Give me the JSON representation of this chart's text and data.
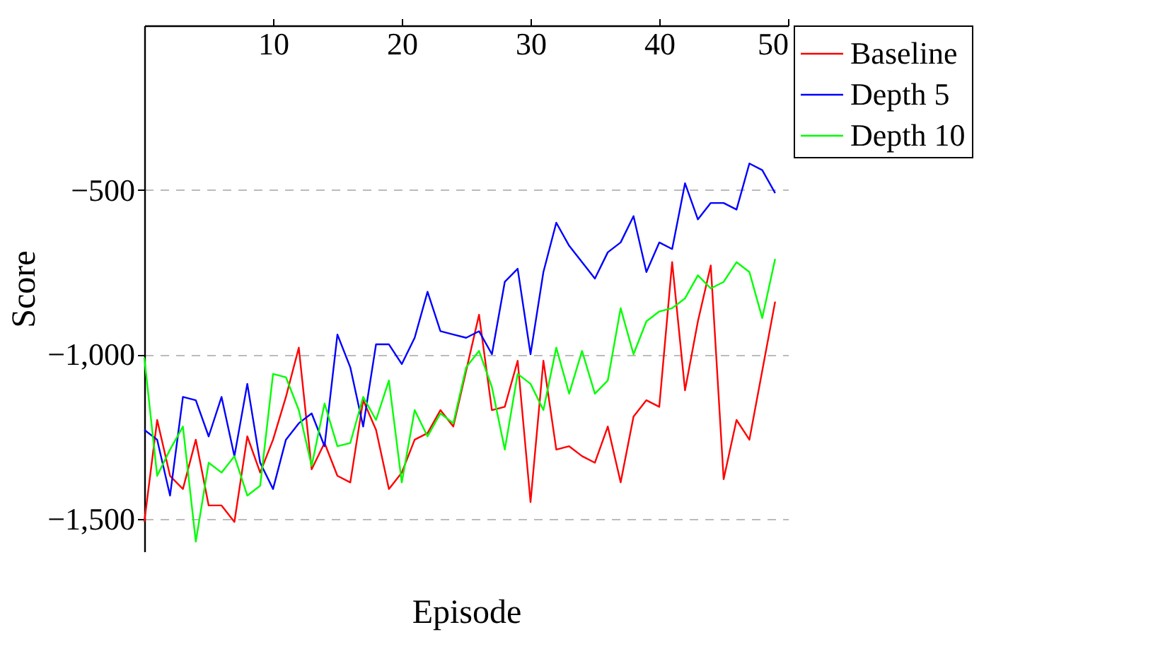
{
  "chart_data": {
    "type": "line",
    "xlabel": "Episode",
    "ylabel": "Score",
    "x": [
      0,
      1,
      2,
      3,
      4,
      5,
      6,
      7,
      8,
      9,
      10,
      11,
      12,
      13,
      14,
      15,
      16,
      17,
      18,
      19,
      20,
      21,
      22,
      23,
      24,
      25,
      26,
      27,
      28,
      29,
      30,
      31,
      32,
      33,
      34,
      35,
      36,
      37,
      38,
      39,
      40,
      41,
      42,
      43,
      44,
      45,
      46,
      47,
      48,
      49
    ],
    "series": [
      {
        "name": "Baseline",
        "color": "#ff0000",
        "values": [
          -1510,
          -1200,
          -1370,
          -1410,
          -1260,
          -1460,
          -1460,
          -1510,
          -1250,
          -1360,
          -1260,
          -1130,
          -980,
          -1350,
          -1270,
          -1370,
          -1390,
          -1140,
          -1230,
          -1410,
          -1360,
          -1260,
          -1240,
          -1170,
          -1220,
          -1050,
          -880,
          -1170,
          -1160,
          -1020,
          -1450,
          -1020,
          -1290,
          -1280,
          -1310,
          -1330,
          -1220,
          -1390,
          -1190,
          -1140,
          -1160,
          -720,
          -1110,
          -900,
          -730,
          -1380,
          -1200,
          -1260,
          -1050,
          -840
        ]
      },
      {
        "name": "Depth 5",
        "color": "#0000ff",
        "values": [
          -1230,
          -1260,
          -1430,
          -1130,
          -1140,
          -1250,
          -1130,
          -1310,
          -1090,
          -1330,
          -1410,
          -1260,
          -1210,
          -1180,
          -1280,
          -940,
          -1040,
          -1220,
          -970,
          -970,
          -1030,
          -950,
          -810,
          -930,
          -940,
          -950,
          -930,
          -1000,
          -780,
          -740,
          -1000,
          -750,
          -600,
          -670,
          -720,
          -770,
          -690,
          -660,
          -580,
          -750,
          -660,
          -680,
          -480,
          -590,
          -540,
          -540,
          -560,
          -420,
          -440,
          -510
        ]
      },
      {
        "name": "Depth 10",
        "color": "#00ff00",
        "values": [
          -1010,
          -1370,
          -1290,
          -1220,
          -1570,
          -1330,
          -1360,
          -1310,
          -1430,
          -1400,
          -1060,
          -1070,
          -1170,
          -1340,
          -1150,
          -1280,
          -1270,
          -1130,
          -1200,
          -1080,
          -1390,
          -1170,
          -1250,
          -1180,
          -1210,
          -1040,
          -990,
          -1100,
          -1290,
          -1060,
          -1090,
          -1170,
          -980,
          -1120,
          -990,
          -1120,
          -1080,
          -860,
          -1000,
          -900,
          -870,
          -860,
          -830,
          -760,
          -800,
          -780,
          -720,
          -750,
          -890,
          -710
        ]
      }
    ],
    "xlim": [
      0,
      50
    ],
    "xticks": [
      10,
      20,
      30,
      40,
      50
    ],
    "ylim": [
      -1600,
      0
    ],
    "yticks": [
      {
        "value": -500,
        "label": "−500"
      },
      {
        "value": -1000,
        "label": "−1,000"
      },
      {
        "value": -1500,
        "label": "−1,500"
      }
    ],
    "grid": "y",
    "legend": "top right",
    "marker": "none",
    "line_style": "solid"
  }
}
